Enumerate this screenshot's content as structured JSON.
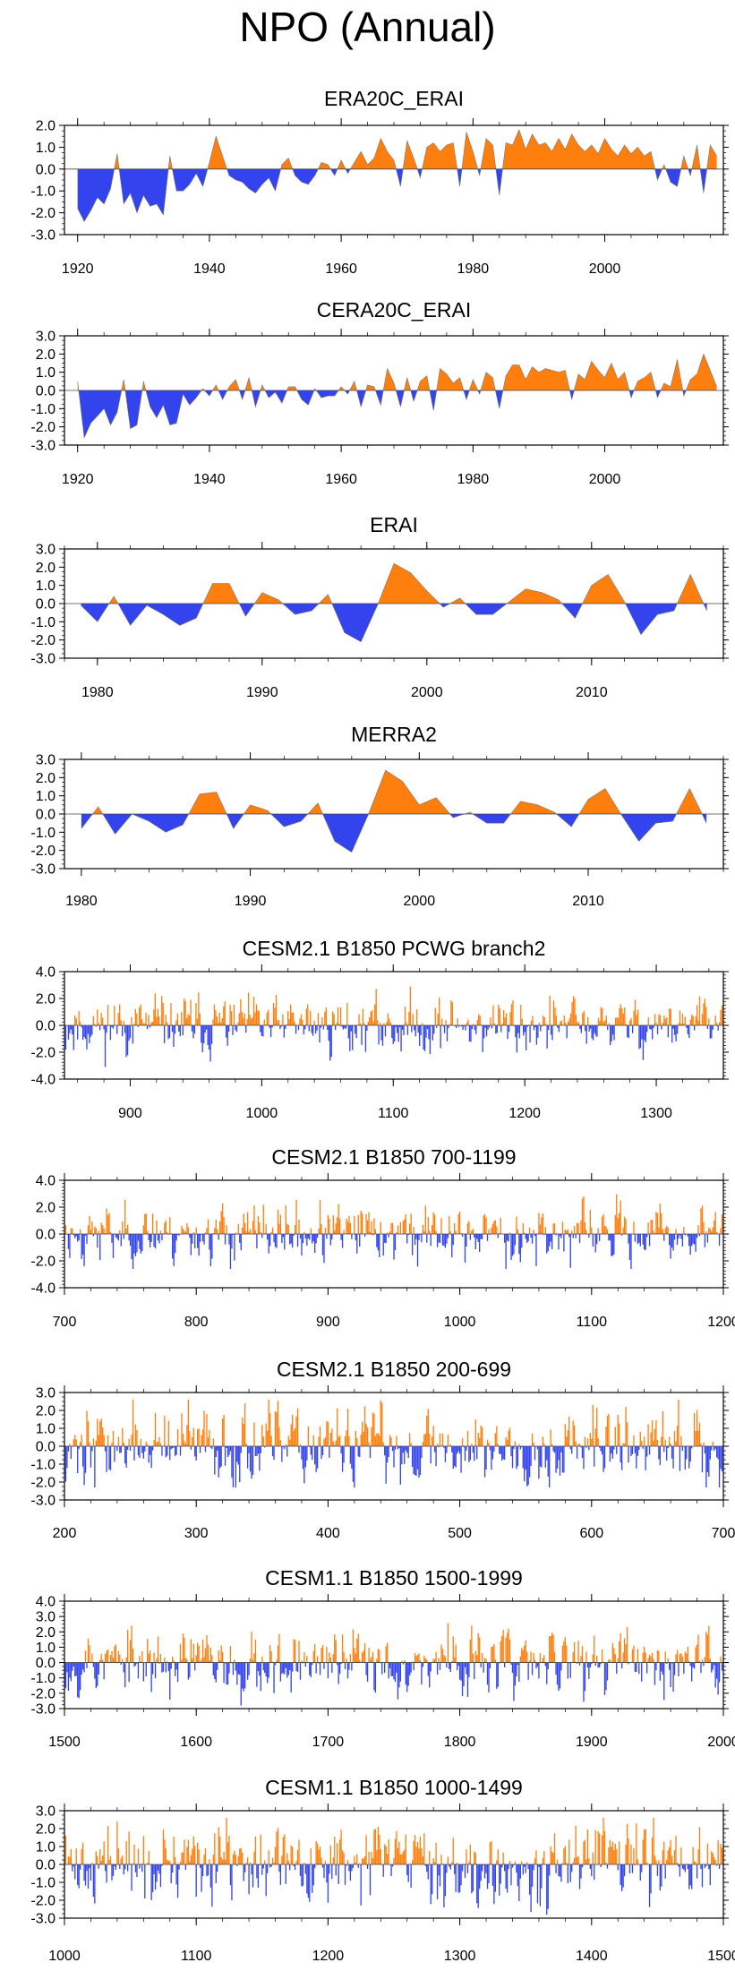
{
  "page_title": "NPO (Annual)",
  "colors": {
    "positive": "#ff7f0e",
    "negative": "#3344ee",
    "axis": "#000000"
  },
  "chart_data": [
    {
      "type": "area",
      "title": "ERA20C_ERAI",
      "xlim": [
        1918,
        2018
      ],
      "ylim": [
        -3,
        2
      ],
      "xticks": [
        1920,
        1940,
        1960,
        1980,
        2000
      ],
      "yticks": [
        "2.0",
        "1.0",
        "0.0",
        "-1.0",
        "-2.0",
        "-3.0"
      ],
      "series": {
        "x": [
          1920,
          1921,
          1922,
          1923,
          1924,
          1925,
          1926,
          1927,
          1928,
          1929,
          1930,
          1931,
          1932,
          1933,
          1934,
          1935,
          1936,
          1937,
          1938,
          1939,
          1940,
          1941,
          1942,
          1943,
          1944,
          1945,
          1946,
          1947,
          1948,
          1949,
          1950,
          1951,
          1952,
          1953,
          1954,
          1955,
          1956,
          1957,
          1958,
          1959,
          1960,
          1961,
          1962,
          1963,
          1964,
          1965,
          1966,
          1967,
          1968,
          1969,
          1970,
          1971,
          1972,
          1973,
          1974,
          1975,
          1976,
          1977,
          1978,
          1979,
          1980,
          1981,
          1982,
          1983,
          1984,
          1985,
          1986,
          1987,
          1988,
          1989,
          1990,
          1991,
          1992,
          1993,
          1994,
          1995,
          1996,
          1997,
          1998,
          1999,
          2000,
          2001,
          2002,
          2003,
          2004,
          2005,
          2006,
          2007,
          2008,
          2009,
          2010,
          2011,
          2012,
          2013,
          2014,
          2015,
          2016,
          2017
        ],
        "values": [
          -1.8,
          -2.4,
          -1.9,
          -1.3,
          -1.6,
          -0.9,
          0.7,
          -1.6,
          -1.1,
          -2.0,
          -1.2,
          -1.7,
          -1.6,
          -2.1,
          0.6,
          -1.0,
          -1.0,
          -0.7,
          -0.2,
          -0.8,
          0.3,
          1.5,
          0.6,
          -0.3,
          -0.5,
          -0.6,
          -0.9,
          -1.1,
          -0.7,
          -0.4,
          -1.0,
          0.2,
          0.5,
          -0.3,
          -0.6,
          -0.7,
          -0.3,
          0.3,
          0.2,
          -0.3,
          0.4,
          -0.2,
          0.3,
          0.8,
          0.2,
          0.5,
          1.4,
          0.8,
          0.4,
          -0.8,
          1.3,
          0.5,
          -0.4,
          1.0,
          1.2,
          0.8,
          1.1,
          1.2,
          -0.8,
          1.7,
          0.8,
          -0.3,
          1.4,
          1.1,
          -1.2,
          1.2,
          1.1,
          1.8,
          0.9,
          1.6,
          1.1,
          1.2,
          0.8,
          1.4,
          0.9,
          1.6,
          1.1,
          0.8,
          1.1,
          0.7,
          1.4,
          0.9,
          0.6,
          1.1,
          0.7,
          1.0,
          0.6,
          0.8,
          -0.5,
          0.2,
          -0.6,
          -0.8,
          0.6,
          -0.3,
          1.1,
          -1.1,
          1.1,
          0.6
        ]
      }
    },
    {
      "type": "area",
      "title": "CERA20C_ERAI",
      "xlim": [
        1918,
        2018
      ],
      "ylim": [
        -3,
        3
      ],
      "xticks": [
        1920,
        1940,
        1960,
        1980,
        2000
      ],
      "yticks": [
        "3.0",
        "2.0",
        "1.0",
        "0.0",
        "-1.0",
        "-2.0",
        "-3.0"
      ],
      "series": {
        "x": [
          1920,
          1921,
          1922,
          1923,
          1924,
          1925,
          1926,
          1927,
          1928,
          1929,
          1930,
          1931,
          1932,
          1933,
          1934,
          1935,
          1936,
          1937,
          1938,
          1939,
          1940,
          1941,
          1942,
          1943,
          1944,
          1945,
          1946,
          1947,
          1948,
          1949,
          1950,
          1951,
          1952,
          1953,
          1954,
          1955,
          1956,
          1957,
          1958,
          1959,
          1960,
          1961,
          1962,
          1963,
          1964,
          1965,
          1966,
          1967,
          1968,
          1969,
          1970,
          1971,
          1972,
          1973,
          1974,
          1975,
          1976,
          1977,
          1978,
          1979,
          1980,
          1981,
          1982,
          1983,
          1984,
          1985,
          1986,
          1987,
          1988,
          1989,
          1990,
          1991,
          1992,
          1993,
          1994,
          1995,
          1996,
          1997,
          1998,
          1999,
          2000,
          2001,
          2002,
          2003,
          2004,
          2005,
          2006,
          2007,
          2008,
          2009,
          2010,
          2011,
          2012,
          2013,
          2014,
          2015,
          2016,
          2017
        ],
        "values": [
          0.5,
          -2.6,
          -1.8,
          -1.4,
          -1.0,
          -1.9,
          -1.2,
          0.6,
          -2.1,
          -1.9,
          0.5,
          -0.9,
          -1.5,
          -0.8,
          -1.9,
          -1.8,
          -0.2,
          -0.8,
          -0.4,
          0.1,
          -0.3,
          0.3,
          -0.5,
          0.2,
          0.6,
          -0.5,
          0.7,
          -0.9,
          0.3,
          -0.4,
          -0.1,
          -0.7,
          0.2,
          0.2,
          -0.5,
          -0.8,
          0.1,
          -0.4,
          -0.3,
          -0.3,
          0.2,
          -0.2,
          0.5,
          -0.9,
          0.3,
          0.2,
          -0.8,
          1.2,
          0.4,
          -0.9,
          0.7,
          -0.6,
          0.5,
          0.8,
          -1.1,
          1.2,
          0.9,
          0.4,
          0.7,
          -0.5,
          0.6,
          -0.2,
          1.0,
          0.7,
          -1.0,
          0.8,
          1.4,
          1.4,
          0.6,
          1.3,
          1.0,
          1.2,
          1.1,
          1.0,
          1.1,
          -0.5,
          0.9,
          0.6,
          1.6,
          1.1,
          0.7,
          1.5,
          0.6,
          1.0,
          -0.4,
          0.5,
          0.7,
          1.0,
          -0.4,
          0.4,
          0.2,
          1.7,
          -0.3,
          0.6,
          0.9,
          2.0,
          1.1,
          0.2
        ]
      }
    },
    {
      "type": "area",
      "title": "ERAI",
      "xlim": [
        1978,
        2018
      ],
      "ylim": [
        -3,
        3
      ],
      "xticks": [
        1980,
        1990,
        2000,
        2010
      ],
      "yticks": [
        "3.0",
        "2.0",
        "1.0",
        "0.0",
        "-1.0",
        "-2.0",
        "-3.0"
      ],
      "series": {
        "x": [
          1979,
          1980,
          1981,
          1982,
          1983,
          1984,
          1985,
          1986,
          1987,
          1988,
          1989,
          1990,
          1991,
          1992,
          1993,
          1994,
          1995,
          1996,
          1997,
          1998,
          1999,
          2000,
          2001,
          2002,
          2003,
          2004,
          2005,
          2006,
          2007,
          2008,
          2009,
          2010,
          2011,
          2012,
          2013,
          2014,
          2015,
          2016,
          2017
        ],
        "values": [
          -0.1,
          -1.0,
          0.4,
          -1.2,
          -0.1,
          -0.6,
          -1.2,
          -0.8,
          1.1,
          1.1,
          -0.7,
          0.6,
          0.2,
          -0.6,
          -0.4,
          0.5,
          -1.6,
          -2.1,
          -0.1,
          2.2,
          1.7,
          0.7,
          -0.2,
          0.3,
          -0.6,
          -0.6,
          0.1,
          0.8,
          0.6,
          0.2,
          -0.8,
          1.0,
          1.6,
          0.1,
          -1.7,
          -0.6,
          -0.4,
          1.6,
          -0.4
        ]
      }
    },
    {
      "type": "area",
      "title": "MERRA2",
      "xlim": [
        1979,
        2018
      ],
      "ylim": [
        -3,
        3
      ],
      "xticks": [
        1980,
        1990,
        2000,
        2010
      ],
      "yticks": [
        "3.0",
        "2.0",
        "1.0",
        "0.0",
        "-1.0",
        "-2.0",
        "-3.0"
      ],
      "series": {
        "x": [
          1980,
          1981,
          1982,
          1983,
          1984,
          1985,
          1986,
          1987,
          1988,
          1989,
          1990,
          1991,
          1992,
          1993,
          1994,
          1995,
          1996,
          1997,
          1998,
          1999,
          2000,
          2001,
          2002,
          2003,
          2004,
          2005,
          2006,
          2007,
          2008,
          2009,
          2010,
          2011,
          2012,
          2013,
          2014,
          2015,
          2016,
          2017
        ],
        "values": [
          -0.8,
          0.4,
          -1.1,
          0.0,
          -0.4,
          -1.0,
          -0.6,
          1.1,
          1.2,
          -0.8,
          0.5,
          0.2,
          -0.7,
          -0.4,
          0.6,
          -1.5,
          -2.1,
          0.0,
          2.4,
          1.8,
          0.5,
          0.9,
          -0.2,
          0.1,
          -0.5,
          -0.5,
          0.7,
          0.5,
          0.1,
          -0.7,
          0.8,
          1.4,
          -0.1,
          -1.5,
          -0.5,
          -0.4,
          1.4,
          -0.5
        ]
      }
    },
    {
      "type": "bar",
      "title": "CESM2.1 B1850 PCWG branch2",
      "xlim": [
        850,
        1351
      ],
      "ylim": [
        -4,
        4
      ],
      "xticks": [
        900,
        1000,
        1100,
        1200,
        1300
      ],
      "yticks": [
        "4.0",
        "2.0",
        "0.0",
        "-2.0",
        "-4.0"
      ],
      "series": {
        "start": 851,
        "count": 500,
        "seed": 11,
        "peak_pos": 2.9,
        "peak_neg": -3.1
      }
    },
    {
      "type": "bar",
      "title": "CESM2.1 B1850 700-1199",
      "xlim": [
        700,
        1200
      ],
      "ylim": [
        -4,
        4
      ],
      "xticks": [
        700,
        800,
        900,
        1000,
        1100,
        1200
      ],
      "yticks": [
        "4.0",
        "2.0",
        "0.0",
        "-2.0",
        "-4.0"
      ],
      "series": {
        "start": 700,
        "count": 500,
        "seed": 23,
        "peak_pos": 3.2,
        "peak_neg": -2.6
      }
    },
    {
      "type": "bar",
      "title": "CESM2.1 B1850 200-699",
      "xlim": [
        200,
        700
      ],
      "ylim": [
        -3,
        3
      ],
      "xticks": [
        200,
        300,
        400,
        500,
        600,
        700
      ],
      "yticks": [
        "3.0",
        "2.0",
        "1.0",
        "0.0",
        "-1.0",
        "-2.0",
        "-3.0"
      ],
      "series": {
        "start": 200,
        "count": 500,
        "seed": 37,
        "peak_pos": 2.6,
        "peak_neg": -2.3
      }
    },
    {
      "type": "bar",
      "title": "CESM1.1 B1850 1500-1999",
      "xlim": [
        1500,
        2000
      ],
      "ylim": [
        -3,
        4
      ],
      "xticks": [
        1500,
        1600,
        1700,
        1800,
        1900,
        2000
      ],
      "yticks": [
        "4.0",
        "3.0",
        "2.0",
        "1.0",
        "0.0",
        "-1.0",
        "-2.0",
        "-3.0"
      ],
      "series": {
        "start": 1500,
        "count": 500,
        "seed": 53,
        "peak_pos": 3.0,
        "peak_neg": -2.8
      }
    },
    {
      "type": "bar",
      "title": "CESM1.1 B1850 1000-1499",
      "xlim": [
        1000,
        1500
      ],
      "ylim": [
        -3,
        3
      ],
      "xticks": [
        1000,
        1100,
        1200,
        1300,
        1400,
        1500
      ],
      "yticks": [
        "3.0",
        "2.0",
        "1.0",
        "0.0",
        "-1.0",
        "-2.0",
        "-3.0"
      ],
      "series": {
        "start": 1000,
        "count": 500,
        "seed": 71,
        "peak_pos": 2.6,
        "peak_neg": -2.8
      }
    }
  ]
}
